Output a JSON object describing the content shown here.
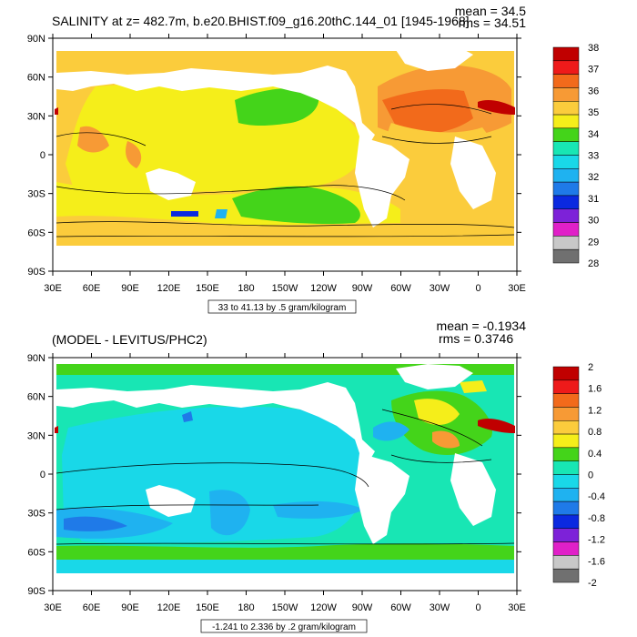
{
  "panels": [
    {
      "id": "top",
      "title": "SALINITY at z= 482.7m, b.e20.BHIST.f09_g16.20thC.144_01 [1945-1968]",
      "mean_text": "mean = 34.5",
      "rms_text": "rms = 34.51",
      "info_box": "33 to 41.13 by .5 gram/kilogram",
      "lat_labels": [
        "90N",
        "60N",
        "30N",
        "0",
        "30S",
        "60S",
        "90S"
      ],
      "lon_labels": [
        "30E",
        "60E",
        "90E",
        "120E",
        "150E",
        "180",
        "150W",
        "120W",
        "90W",
        "60W",
        "30W",
        "0",
        "30E"
      ],
      "colorbar": {
        "labels": [
          "38",
          "37",
          "36",
          "35",
          "34",
          "33",
          "32",
          "31",
          "30",
          "29",
          "28"
        ],
        "colors": [
          "#c00000",
          "#ee1a1a",
          "#f26a1b",
          "#f79a35",
          "#fbcc3c",
          "#f5ee1a",
          "#44d41a",
          "#18e6b4",
          "#19d8e8",
          "#1fb2f0",
          "#1f7ae8",
          "#0b29e0",
          "#7d22d8",
          "#e020c8",
          "#c8c8c8",
          "#707070"
        ]
      }
    },
    {
      "id": "bottom",
      "title": "(MODEL - LEVITUS/PHC2)",
      "mean_text": "mean = -0.1934",
      "rms_text": "rms = 0.3746",
      "info_box": "-1.241 to 2.336 by .2 gram/kilogram",
      "lat_labels": [
        "90N",
        "60N",
        "30N",
        "0",
        "30S",
        "60S",
        "90S"
      ],
      "lon_labels": [
        "30E",
        "60E",
        "90E",
        "120E",
        "150E",
        "180",
        "150W",
        "120W",
        "90W",
        "60W",
        "30W",
        "0",
        "30E"
      ],
      "colorbar": {
        "labels": [
          "2",
          "1.6",
          "1.2",
          "0.8",
          "0.4",
          "0",
          "-0.4",
          "-0.8",
          "-1.2",
          "-1.6",
          "-2"
        ],
        "colors": [
          "#c00000",
          "#ee1a1a",
          "#f26a1b",
          "#f79a35",
          "#fbcc3c",
          "#f5ee1a",
          "#44d41a",
          "#18e6b4",
          "#19d8e8",
          "#1fb2f0",
          "#1f7ae8",
          "#0b29e0",
          "#7d22d8",
          "#e020c8",
          "#c8c8c8",
          "#707070"
        ]
      }
    }
  ],
  "colors": {
    "land": "#ffffff",
    "frame": "#000000",
    "top_background_field": "#f5ee1a",
    "bottom_background_field": "#19d8e8"
  }
}
